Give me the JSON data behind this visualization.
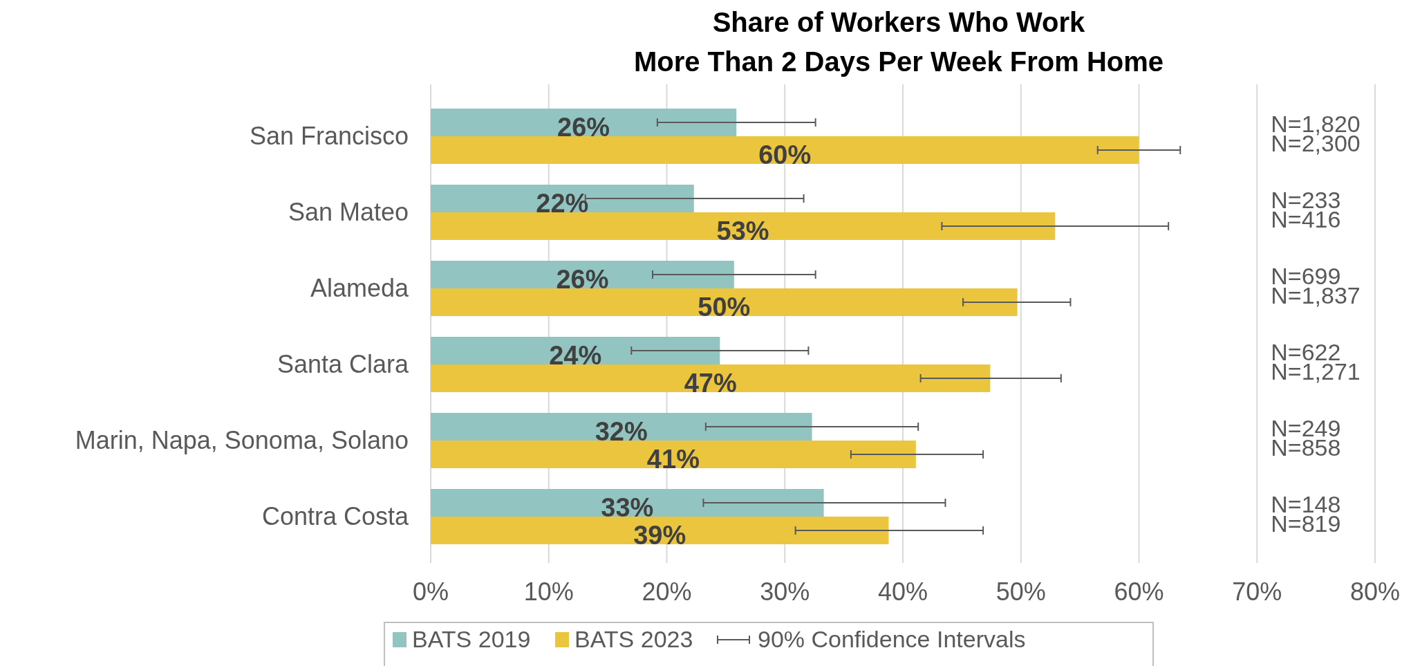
{
  "chart_data": {
    "type": "bar",
    "orientation": "horizontal",
    "title": "Share of Workers Who Work\nMore Than 2 Days Per Week From Home",
    "categories": [
      "San Francisco",
      "San Mateo",
      "Alameda",
      "Santa Clara",
      "Marin, Napa, Sonoma, Solano",
      "Contra Costa"
    ],
    "series": [
      {
        "name": "BATS 2019",
        "color": "#92c5c2",
        "values": [
          25.9,
          22.3,
          25.7,
          24.5,
          32.3,
          33.3
        ],
        "value_labels": [
          "26%",
          "22%",
          "26%",
          "24%",
          "32%",
          "33%"
        ],
        "errors": [
          [
            19.2,
            32.6
          ],
          [
            13.1,
            31.6
          ],
          [
            18.8,
            32.6
          ],
          [
            17.0,
            32.0
          ],
          [
            23.3,
            41.3
          ],
          [
            23.1,
            43.6
          ]
        ]
      },
      {
        "name": "BATS 2023",
        "color": "#ebc53e",
        "values": [
          60.0,
          52.9,
          49.7,
          47.4,
          41.1,
          38.8
        ],
        "value_labels": [
          "60%",
          "53%",
          "50%",
          "47%",
          "41%",
          "39%"
        ],
        "errors": [
          [
            56.5,
            63.5
          ],
          [
            43.3,
            62.5
          ],
          [
            45.1,
            54.2
          ],
          [
            41.5,
            53.4
          ],
          [
            35.6,
            46.8
          ],
          [
            30.9,
            46.8
          ]
        ]
      }
    ],
    "xlim": [
      0,
      80
    ],
    "xticks": [
      {
        "value": 0,
        "label": "0%"
      },
      {
        "value": 10,
        "label": "10%"
      },
      {
        "value": 20,
        "label": "20%"
      },
      {
        "value": 30,
        "label": "30%"
      },
      {
        "value": 40,
        "label": "40%"
      },
      {
        "value": 50,
        "label": "50%"
      },
      {
        "value": 60,
        "label": "60%"
      },
      {
        "value": 70,
        "label": "70%"
      },
      {
        "value": 80,
        "label": "80%"
      }
    ],
    "grid": "x",
    "legend": "bottom",
    "annotations": [
      "90% Confidence Intervals",
      "N=1,820",
      "N=2,300",
      "N=233",
      "N=416",
      "N=699",
      "N=1,837",
      "N=622",
      "N=1,271",
      "N=249",
      "N=858",
      "N=148",
      "N=819"
    ]
  }
}
